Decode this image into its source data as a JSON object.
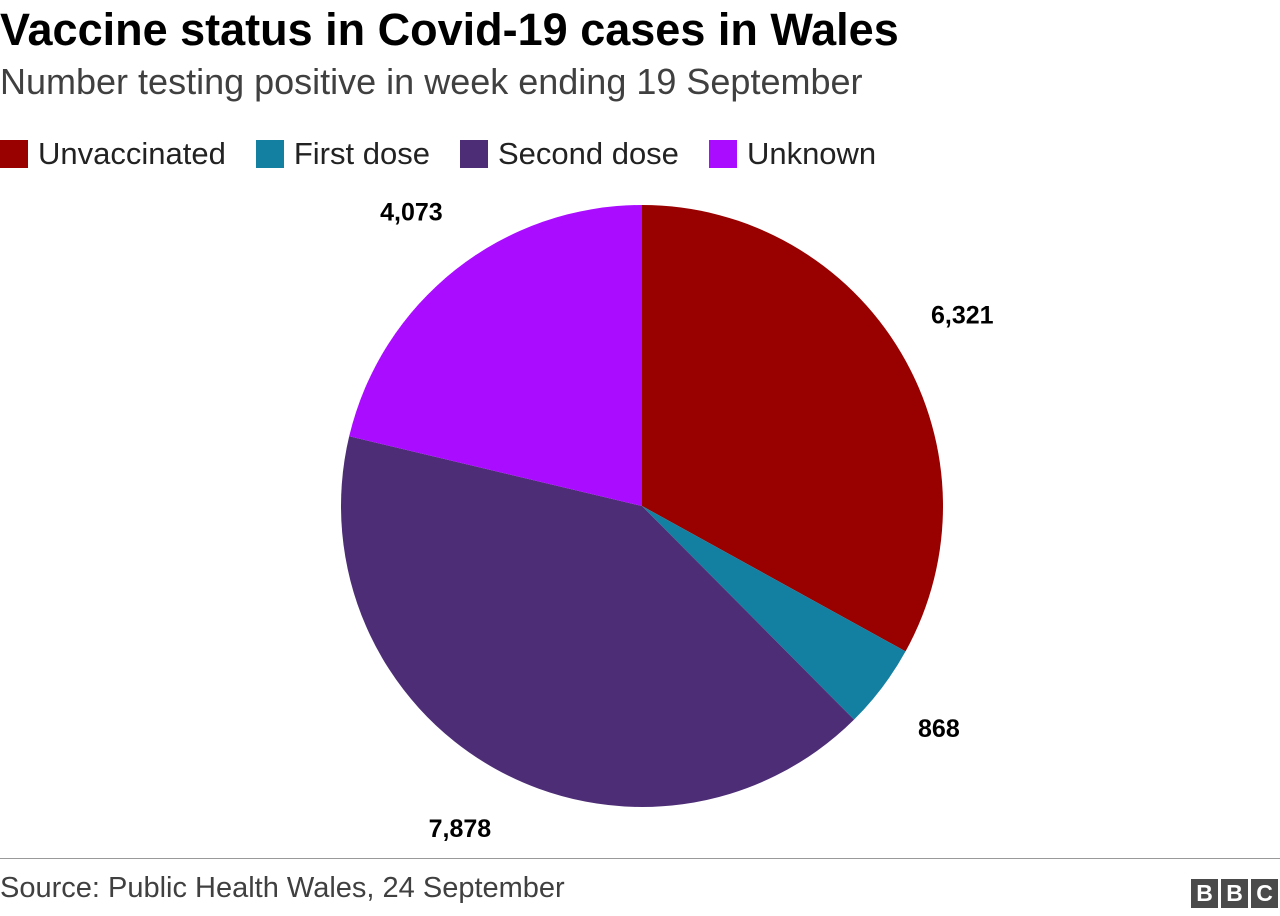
{
  "header": {
    "title": "Vaccine status in Covid-19 cases in Wales",
    "subtitle": "Number testing positive in week ending 19 September"
  },
  "chart_data": {
    "type": "pie",
    "title": "Vaccine status in Covid-19 cases in Wales",
    "subtitle": "Number testing positive in week ending 19 September",
    "legend_position": "top-left",
    "slices": [
      {
        "label": "Unvaccinated",
        "value": 6321,
        "display": "6,321",
        "color": "#990000"
      },
      {
        "label": "First dose",
        "value": 868,
        "display": "868",
        "color": "#1380a1"
      },
      {
        "label": "Second dose",
        "value": 7878,
        "display": "7,878",
        "color": "#4d2d76"
      },
      {
        "label": "Unknown",
        "value": 4073,
        "display": "4,073",
        "color": "#aa0cff"
      }
    ]
  },
  "footer": {
    "source": "Source: Public Health Wales, 24 September",
    "logo_letters": [
      "B",
      "B",
      "C"
    ]
  }
}
